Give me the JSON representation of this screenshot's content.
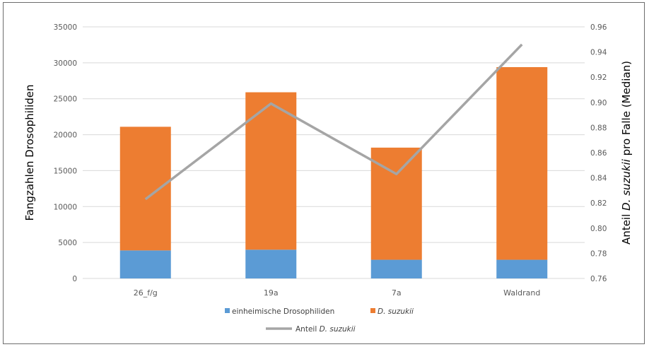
{
  "chart_data": {
    "type": "bar",
    "stacked": true,
    "categories": [
      "26_f/g",
      "19a",
      "7a",
      "Waldrand"
    ],
    "series": [
      {
        "name": "einheimische Drosophiliden",
        "type": "bar",
        "axis": "left",
        "color": "#5b9bd5",
        "values": [
          3900,
          4000,
          2600,
          2600
        ]
      },
      {
        "name_parts": [
          {
            "text": "D. suzukii",
            "italic": true
          }
        ],
        "type": "bar",
        "axis": "left",
        "color": "#ed7d31",
        "values": [
          17200,
          21900,
          15600,
          26800
        ]
      },
      {
        "name_parts": [
          {
            "text": "Anteil ",
            "italic": false
          },
          {
            "text": "D. suzukii",
            "italic": true
          }
        ],
        "type": "line",
        "axis": "right",
        "color": "#a5a5a5",
        "values": [
          0.823,
          0.899,
          0.843,
          0.946
        ]
      }
    ],
    "ylabel": "Fangzahlen Drosophiliden",
    "y2label_parts": [
      {
        "text": "Anteil ",
        "italic": false
      },
      {
        "text": "D. suzukii",
        "italic": true
      },
      {
        "text": "  pro Falle (Median)",
        "italic": false
      }
    ],
    "ylim": [
      0,
      35000
    ],
    "yticks": [
      0,
      5000,
      10000,
      15000,
      20000,
      25000,
      30000,
      35000
    ],
    "y2lim": [
      0.76,
      0.96
    ],
    "y2ticks": [
      "0.76",
      "0.78",
      "0.80",
      "0.82",
      "0.84",
      "0.86",
      "0.88",
      "0.90",
      "0.92",
      "0.94",
      "0.96"
    ],
    "grid": true,
    "legend_position": "bottom"
  }
}
